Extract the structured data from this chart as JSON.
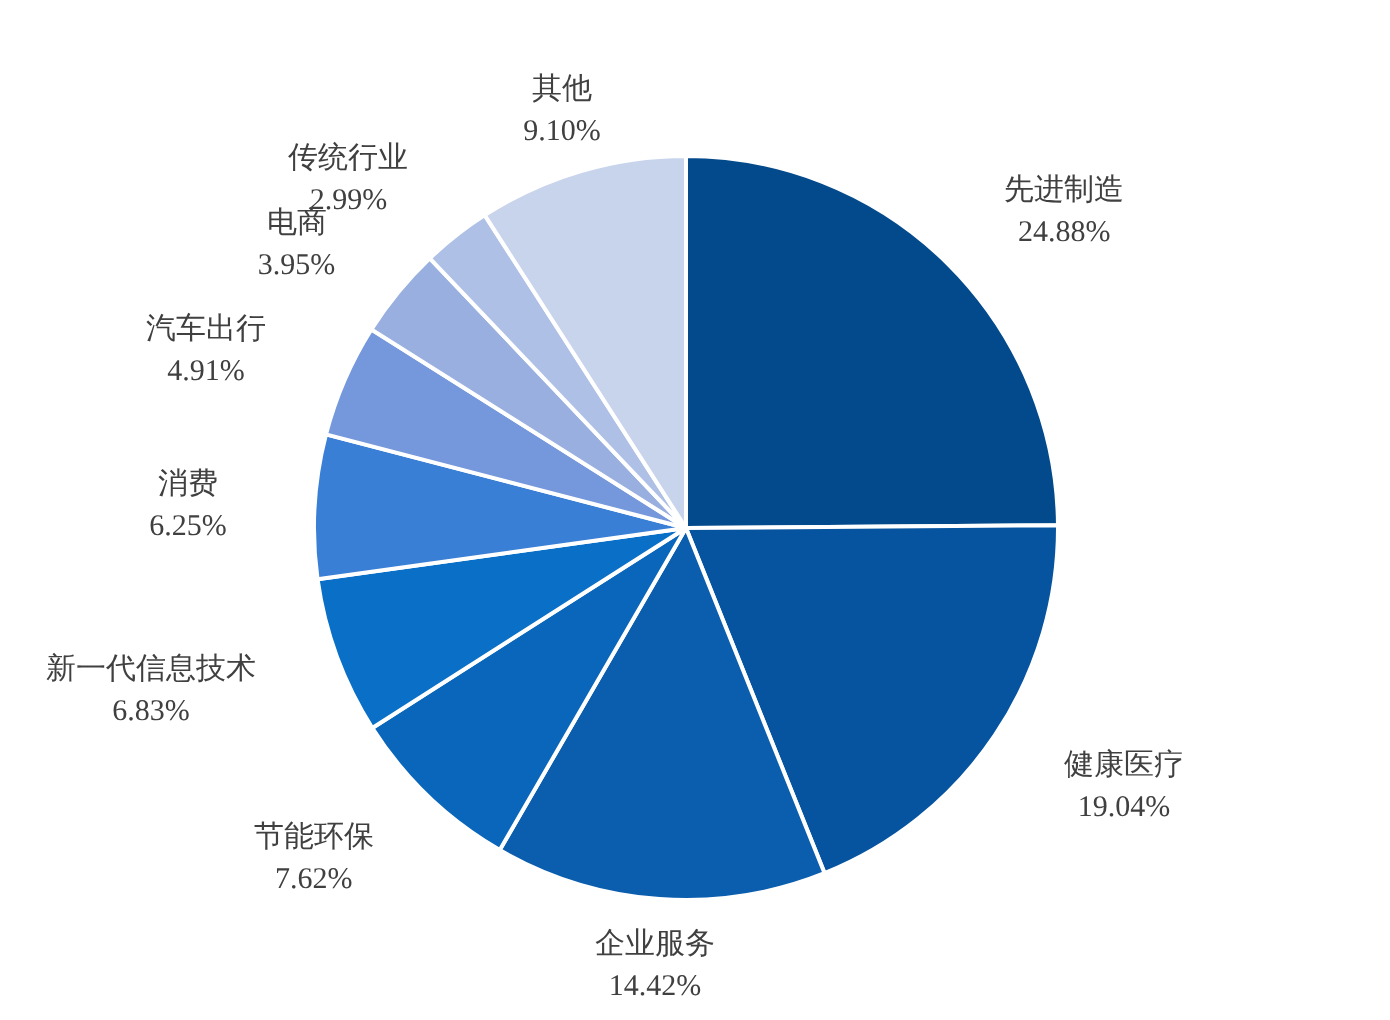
{
  "chart_data": {
    "type": "pie",
    "categories": [
      "先进制造",
      "健康医疗",
      "企业服务",
      "节能环保",
      "新一代信息技术",
      "消费",
      "汽车出行",
      "电商",
      "传统行业",
      "其他"
    ],
    "values": [
      24.88,
      19.04,
      14.42,
      7.62,
      6.83,
      6.25,
      4.91,
      3.95,
      2.99,
      9.1
    ],
    "colors": [
      "#034a8c",
      "#0654a0",
      "#0b5dae",
      "#0a66ba",
      "#0a6fc6",
      "#3a7fd6",
      "#7597dc",
      "#98afe0",
      "#afc0e6",
      "#c8d3ec"
    ],
    "value_labels": [
      "24.88%",
      "19.04%",
      "14.42%",
      "7.62%",
      "6.83%",
      "6.25%",
      "4.91%",
      "3.95%",
      "2.99%",
      "9.10%"
    ]
  }
}
